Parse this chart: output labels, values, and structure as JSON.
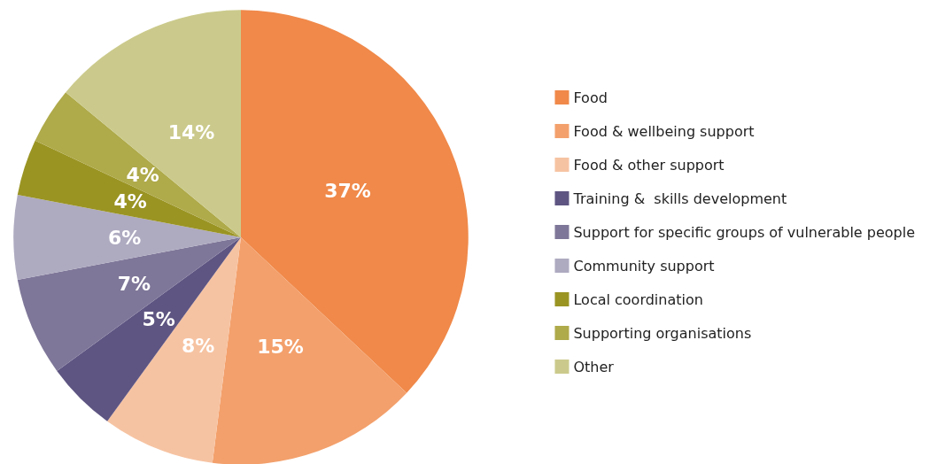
{
  "chart_data": {
    "type": "pie",
    "categories": [
      "Food",
      "Food & wellbeing support",
      "Food & other support",
      "Training &  skills development",
      "Support for specific groups of vulnerable people",
      "Community support",
      "Local coordination",
      "Supporting organisations",
      "Other"
    ],
    "values": [
      37,
      15,
      8,
      5,
      7,
      6,
      4,
      4,
      14
    ],
    "value_labels": [
      "37%",
      "15%",
      "8%",
      "5%",
      "7%",
      "6%",
      "4%",
      "4%",
      "14%"
    ],
    "colors": [
      "#f0894a",
      "#f3a06c",
      "#f6c3a2",
      "#5e5582",
      "#7f7799",
      "#aeaac0",
      "#9a9423",
      "#afaa4a",
      "#cbca8c"
    ],
    "legend": "right"
  }
}
